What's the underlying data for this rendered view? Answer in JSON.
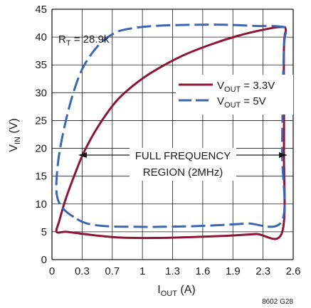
{
  "chart_data": {
    "type": "line",
    "xlabel": {
      "main": "I",
      "sub": "OUT",
      "unit": " (A)"
    },
    "ylabel": {
      "main": "V",
      "sub": "IN",
      "unit": " (V)"
    },
    "xlim": [
      0,
      2.6
    ],
    "ylim": [
      0,
      45
    ],
    "x_ticks": [
      "0",
      "0.3",
      "0.7",
      "1",
      "1.3",
      "1.6",
      "1.9",
      "2.3",
      "2.6"
    ],
    "y_ticks": [
      "0",
      "5",
      "10",
      "15",
      "20",
      "25",
      "30",
      "35",
      "40",
      "45"
    ],
    "grid": true,
    "series": [
      {
        "name": "V_OUT = 3.3V",
        "legend": {
          "main": "V",
          "sub": "OUT",
          "rest": " = 3.3V"
        },
        "color": "#8c1538",
        "dash": "solid",
        "points": [
          [
            0.05,
            5.0
          ],
          [
            0.15,
            5.0
          ],
          [
            0.3,
            4.7
          ],
          [
            0.5,
            4.3
          ],
          [
            0.7,
            4.0
          ],
          [
            0.9,
            3.9
          ],
          [
            1.1,
            3.9
          ],
          [
            1.3,
            3.95
          ],
          [
            1.6,
            4.1
          ],
          [
            1.9,
            4.3
          ],
          [
            2.2,
            4.6
          ],
          [
            2.48,
            4.9
          ],
          [
            2.5,
            20
          ],
          [
            2.5,
            38
          ],
          [
            2.52,
            41.3
          ],
          [
            2.47,
            41.8
          ],
          [
            2.3,
            41.4
          ],
          [
            2.0,
            40.2
          ],
          [
            1.7,
            38.6
          ],
          [
            1.4,
            36.6
          ],
          [
            1.1,
            33.9
          ],
          [
            0.9,
            31.6
          ],
          [
            0.7,
            28.6
          ],
          [
            0.5,
            24.0
          ],
          [
            0.35,
            19.5
          ],
          [
            0.25,
            15.5
          ],
          [
            0.15,
            11.0
          ],
          [
            0.08,
            7.0
          ],
          [
            0.05,
            5.0
          ]
        ]
      },
      {
        "name": "V_OUT = 5V",
        "legend": {
          "main": "V",
          "sub": "OUT",
          "rest": " = 5V"
        },
        "color": "#3c66b1",
        "dash": "long-dash",
        "points": [
          [
            0.27,
            7.3
          ],
          [
            0.4,
            6.4
          ],
          [
            0.6,
            6.0
          ],
          [
            0.9,
            5.9
          ],
          [
            1.2,
            5.9
          ],
          [
            1.5,
            6.0
          ],
          [
            1.8,
            6.2
          ],
          [
            2.1,
            6.5
          ],
          [
            2.48,
            7.0
          ],
          [
            2.48,
            20
          ],
          [
            2.5,
            38
          ],
          [
            2.53,
            41.3
          ],
          [
            2.45,
            41.9
          ],
          [
            2.2,
            42.0
          ],
          [
            1.9,
            42.2
          ],
          [
            1.5,
            42.2
          ],
          [
            1.1,
            42.0
          ],
          [
            0.8,
            41.4
          ],
          [
            0.65,
            40.5
          ],
          [
            0.5,
            38.5
          ],
          [
            0.35,
            35.0
          ],
          [
            0.25,
            31.0
          ],
          [
            0.15,
            25.0
          ],
          [
            0.07,
            18.0
          ],
          [
            0.05,
            12.0
          ],
          [
            0.12,
            9.2
          ],
          [
            0.27,
            7.3
          ]
        ]
      }
    ],
    "annotations": {
      "rt": {
        "main": "R",
        "sub": "T",
        "rest": " = 28.9k"
      },
      "region_line1": "FULL FREQUENCY",
      "region_line2": "REGION (2MHz)",
      "figure_code": "8602 G28"
    }
  }
}
